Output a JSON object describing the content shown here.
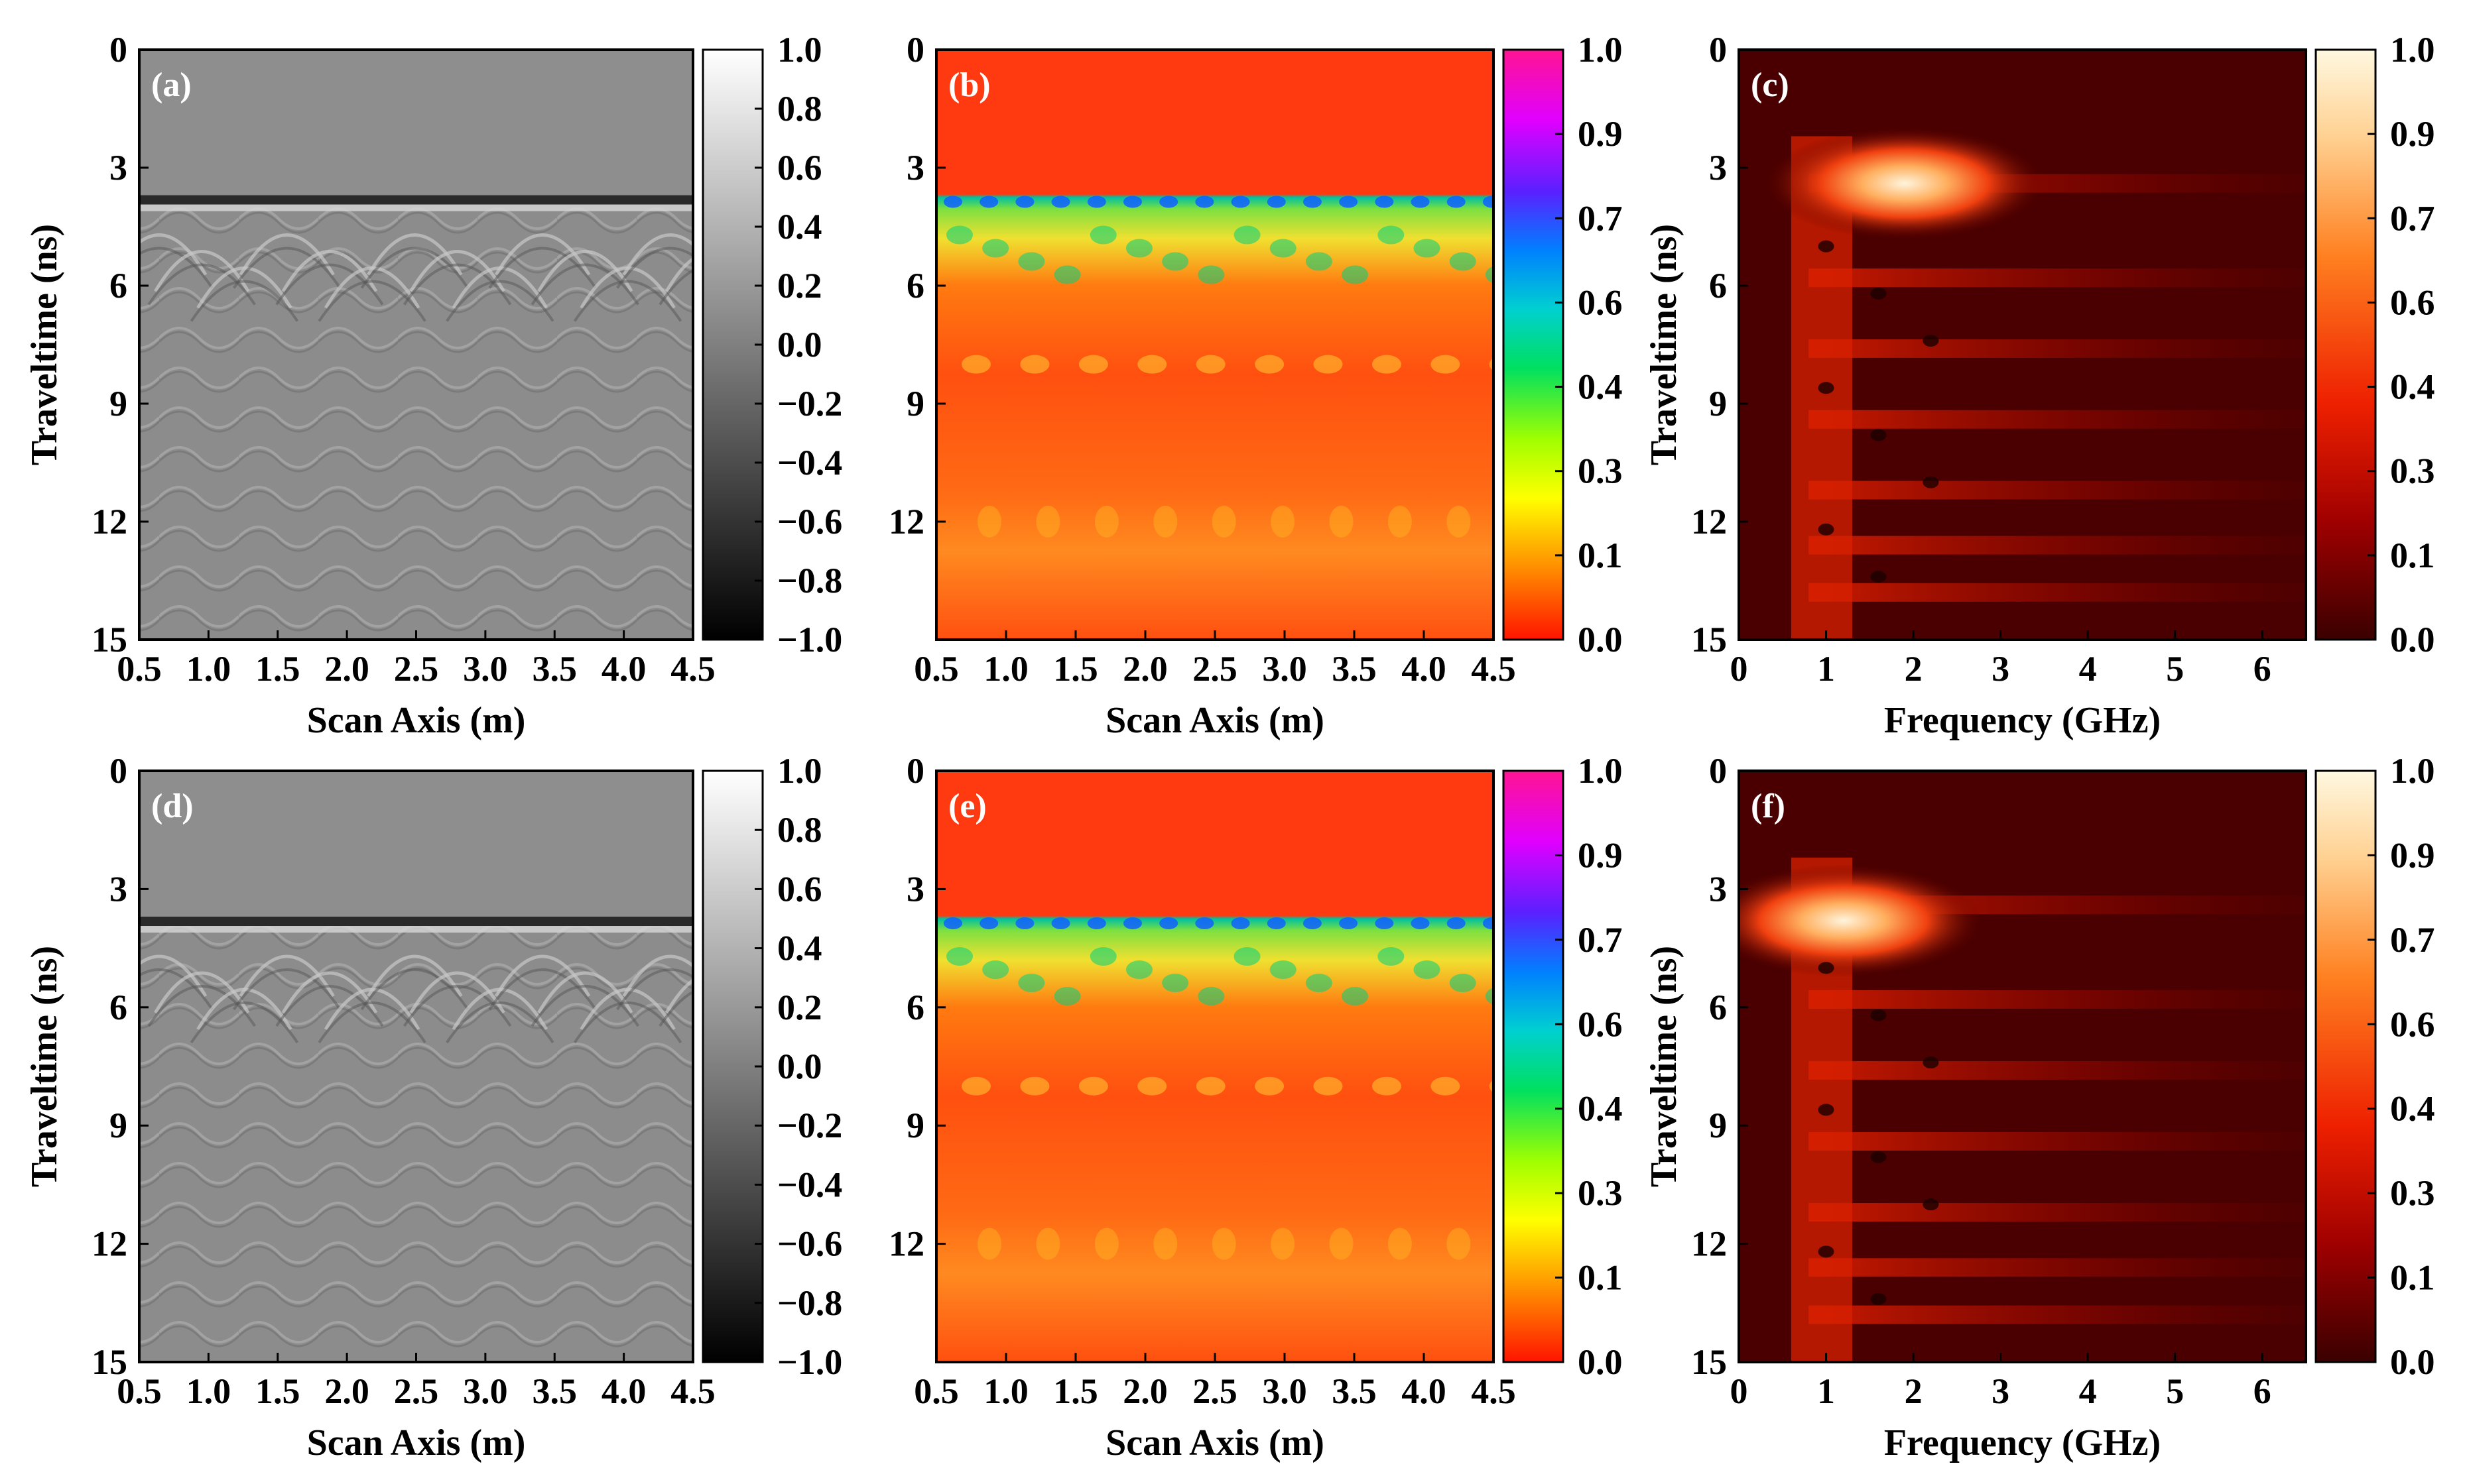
{
  "figure": {
    "panels": [
      {
        "id": "a",
        "label": "(a)",
        "kind": "gray",
        "xlabel": "Scan Axis (m)",
        "ylabel": "Traveltime (ns)",
        "xticks": [
          "0.5",
          "1.0",
          "1.5",
          "2.0",
          "2.5",
          "3.0",
          "3.5",
          "4.0",
          "4.5"
        ],
        "yticks": [
          "0",
          "3",
          "6",
          "9",
          "12",
          "15"
        ],
        "cbticks": [
          "1.0",
          "0.8",
          "0.6",
          "0.4",
          "0.2",
          "0.0",
          "−0.2",
          "−0.4",
          "−0.6",
          "−0.8",
          "−1.0"
        ]
      },
      {
        "id": "b",
        "label": "(b)",
        "kind": "rainbow",
        "xlabel": "Scan Axis (m)",
        "ylabel": "",
        "xticks": [
          "0.5",
          "1.0",
          "1.5",
          "2.0",
          "2.5",
          "3.0",
          "3.5",
          "4.0",
          "4.5"
        ],
        "yticks": [
          "0",
          "3",
          "6",
          "9",
          "12"
        ],
        "cbticks": [
          "1.0",
          "0.9",
          "0.7",
          "0.6",
          "0.4",
          "0.3",
          "0.1",
          "0.0"
        ]
      },
      {
        "id": "c",
        "label": "(c)",
        "kind": "heat",
        "xlabel": "Frequency (GHz)",
        "ylabel": "Traveltime (ns)",
        "xticks": [
          "0",
          "1",
          "2",
          "3",
          "4",
          "5",
          "6"
        ],
        "yticks": [
          "0",
          "3",
          "6",
          "9",
          "12",
          "15"
        ],
        "cbticks": [
          "1.0",
          "0.9",
          "0.7",
          "0.6",
          "0.4",
          "0.3",
          "0.1",
          "0.0"
        ]
      },
      {
        "id": "d",
        "label": "(d)",
        "kind": "gray",
        "xlabel": "Scan Axis (m)",
        "ylabel": "Traveltime (ns)",
        "xticks": [
          "0.5",
          "1.0",
          "1.5",
          "2.0",
          "2.5",
          "3.0",
          "3.5",
          "4.0",
          "4.5"
        ],
        "yticks": [
          "0",
          "3",
          "6",
          "9",
          "12",
          "15"
        ],
        "cbticks": [
          "1.0",
          "0.8",
          "0.6",
          "0.4",
          "0.2",
          "0.0",
          "−0.2",
          "−0.4",
          "−0.6",
          "−0.8",
          "−1.0"
        ]
      },
      {
        "id": "e",
        "label": "(e)",
        "kind": "rainbow",
        "xlabel": "Scan Axis (m)",
        "ylabel": "",
        "xticks": [
          "0.5",
          "1.0",
          "1.5",
          "2.0",
          "2.5",
          "3.0",
          "3.5",
          "4.0",
          "4.5"
        ],
        "yticks": [
          "0",
          "3",
          "6",
          "9",
          "12"
        ],
        "cbticks": [
          "1.0",
          "0.9",
          "0.7",
          "0.6",
          "0.4",
          "0.3",
          "0.1",
          "0.0"
        ]
      },
      {
        "id": "f",
        "label": "(f)",
        "kind": "heat",
        "xlabel": "Frequency (GHz)",
        "ylabel": "Traveltime (ns)",
        "xticks": [
          "0",
          "1",
          "2",
          "3",
          "4",
          "5",
          "6"
        ],
        "yticks": [
          "0",
          "3",
          "6",
          "9",
          "12",
          "15"
        ],
        "cbticks": [
          "1.0",
          "0.9",
          "0.7",
          "0.6",
          "0.4",
          "0.3",
          "0.1",
          "0.0"
        ]
      }
    ]
  },
  "chart_data": [
    {
      "panel": "a",
      "type": "heatmap",
      "description_label": "(a)",
      "xlabel": "Scan Axis (m)",
      "ylabel": "Traveltime (ns)",
      "xlim": [
        0.5,
        4.5
      ],
      "ylim": [
        15,
        0
      ],
      "clim": [
        -1.0,
        1.0
      ],
      "colormap": "gray",
      "surface_reflection_ns": 3.7
    },
    {
      "panel": "b",
      "type": "heatmap",
      "description_label": "(b)",
      "xlabel": "Scan Axis (m)",
      "ylabel": "",
      "xlim": [
        0.5,
        4.5
      ],
      "ylim": [
        15,
        0
      ],
      "clim": [
        0.0,
        1.0
      ],
      "colormap": "rainbow",
      "surface_reflection_ns": 3.7
    },
    {
      "panel": "c",
      "type": "heatmap",
      "description_label": "(c)",
      "xlabel": "Frequency (GHz)",
      "ylabel": "Traveltime (ns)",
      "xlim": [
        0,
        6.5
      ],
      "ylim": [
        15,
        0
      ],
      "clim": [
        0.0,
        1.0
      ],
      "colormap": "hot",
      "peak_frequency_ghz": 1.9,
      "peak_traveltime_ns": 3.4
    },
    {
      "panel": "d",
      "type": "heatmap",
      "description_label": "(d)",
      "xlabel": "Scan Axis (m)",
      "ylabel": "Traveltime (ns)",
      "xlim": [
        0.5,
        4.5
      ],
      "ylim": [
        15,
        0
      ],
      "clim": [
        -1.0,
        1.0
      ],
      "colormap": "gray",
      "surface_reflection_ns": 3.7
    },
    {
      "panel": "e",
      "type": "heatmap",
      "description_label": "(e)",
      "xlabel": "Scan Axis (m)",
      "ylabel": "",
      "xlim": [
        0.5,
        4.5
      ],
      "ylim": [
        15,
        0
      ],
      "clim": [
        0.0,
        1.0
      ],
      "colormap": "rainbow",
      "surface_reflection_ns": 3.7
    },
    {
      "panel": "f",
      "type": "heatmap",
      "description_label": "(f)",
      "xlabel": "Frequency (GHz)",
      "ylabel": "Traveltime (ns)",
      "xlim": [
        0,
        6.5
      ],
      "ylim": [
        15,
        0
      ],
      "clim": [
        0.0,
        1.0
      ],
      "colormap": "hot",
      "peak_frequency_ghz": 1.2,
      "peak_traveltime_ns": 3.8
    }
  ]
}
